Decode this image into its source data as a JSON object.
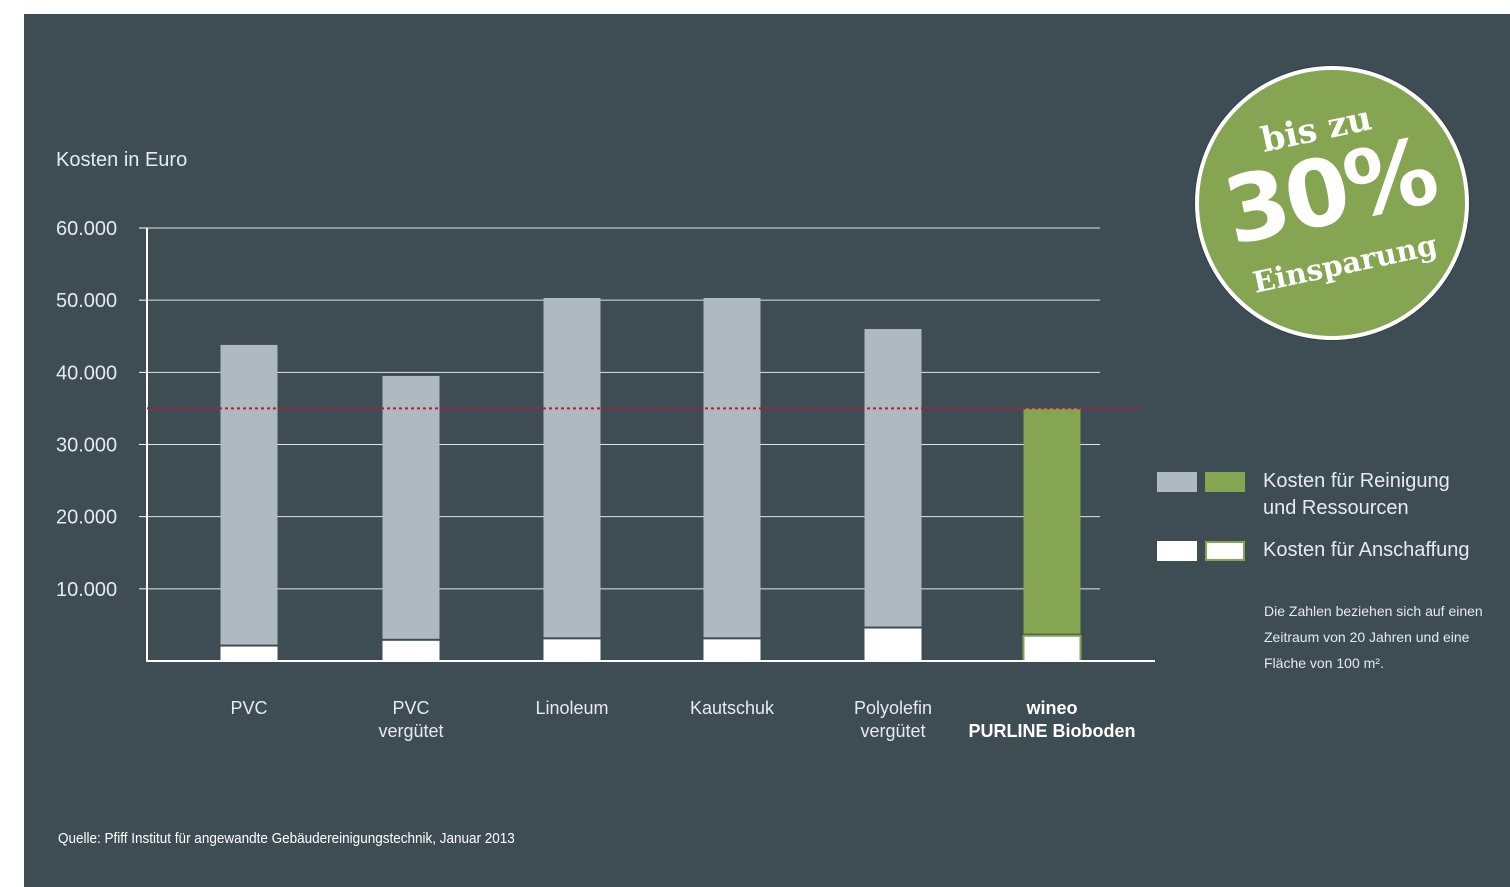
{
  "chart_data": {
    "type": "bar",
    "stacked": true,
    "ylabel": "Kosten in Euro",
    "ylim": [
      0,
      60000
    ],
    "yticks": [
      10000,
      20000,
      30000,
      40000,
      50000,
      60000
    ],
    "ytick_labels": [
      "10.000",
      "20.000",
      "30.000",
      "40.000",
      "50.000",
      "60.000"
    ],
    "grid": true,
    "categories": [
      {
        "line1": "PVC",
        "line2": "",
        "bold": false
      },
      {
        "line1": "PVC",
        "line2": "vergütet",
        "bold": false
      },
      {
        "line1": "Linoleum",
        "line2": "",
        "bold": false
      },
      {
        "line1": "Kautschuk",
        "line2": "",
        "bold": false
      },
      {
        "line1": "Polyolefin",
        "line2": "vergütet",
        "bold": false
      },
      {
        "line1": "wineo",
        "line2": "PURLINE Bioboden",
        "bold": true
      }
    ],
    "series": [
      {
        "name": "Kosten für Anschaffung",
        "values": [
          2000,
          2800,
          3000,
          3000,
          4500,
          3500
        ]
      },
      {
        "name": "Kosten für Reinigung und Ressourcen",
        "values": [
          41800,
          36700,
          47300,
          47300,
          41500,
          31500
        ]
      }
    ],
    "reference_line": 35000,
    "colors": {
      "background": "#3e4c53",
      "cleaning": "#afbac0",
      "cleaning_highlight": "#86a552",
      "purchase": "#ffffff",
      "reference": "#c0143c",
      "grid": "#dfe4e6"
    }
  },
  "legend": {
    "cleaning_line1": "Kosten für Reinigung",
    "cleaning_line2": "und Ressourcen",
    "purchase": "Kosten für Anschaffung"
  },
  "note": "Die Zahlen beziehen sich auf einen Zeitraum von 20 Jahren und eine Fläche von 100 m².",
  "source": "Quelle: Pfiff Institut für angewandte Gebäudereinigungstechnik, Januar 2013",
  "badge": {
    "top": "bis zu",
    "big": "30%",
    "bottom": "Einsparung"
  }
}
